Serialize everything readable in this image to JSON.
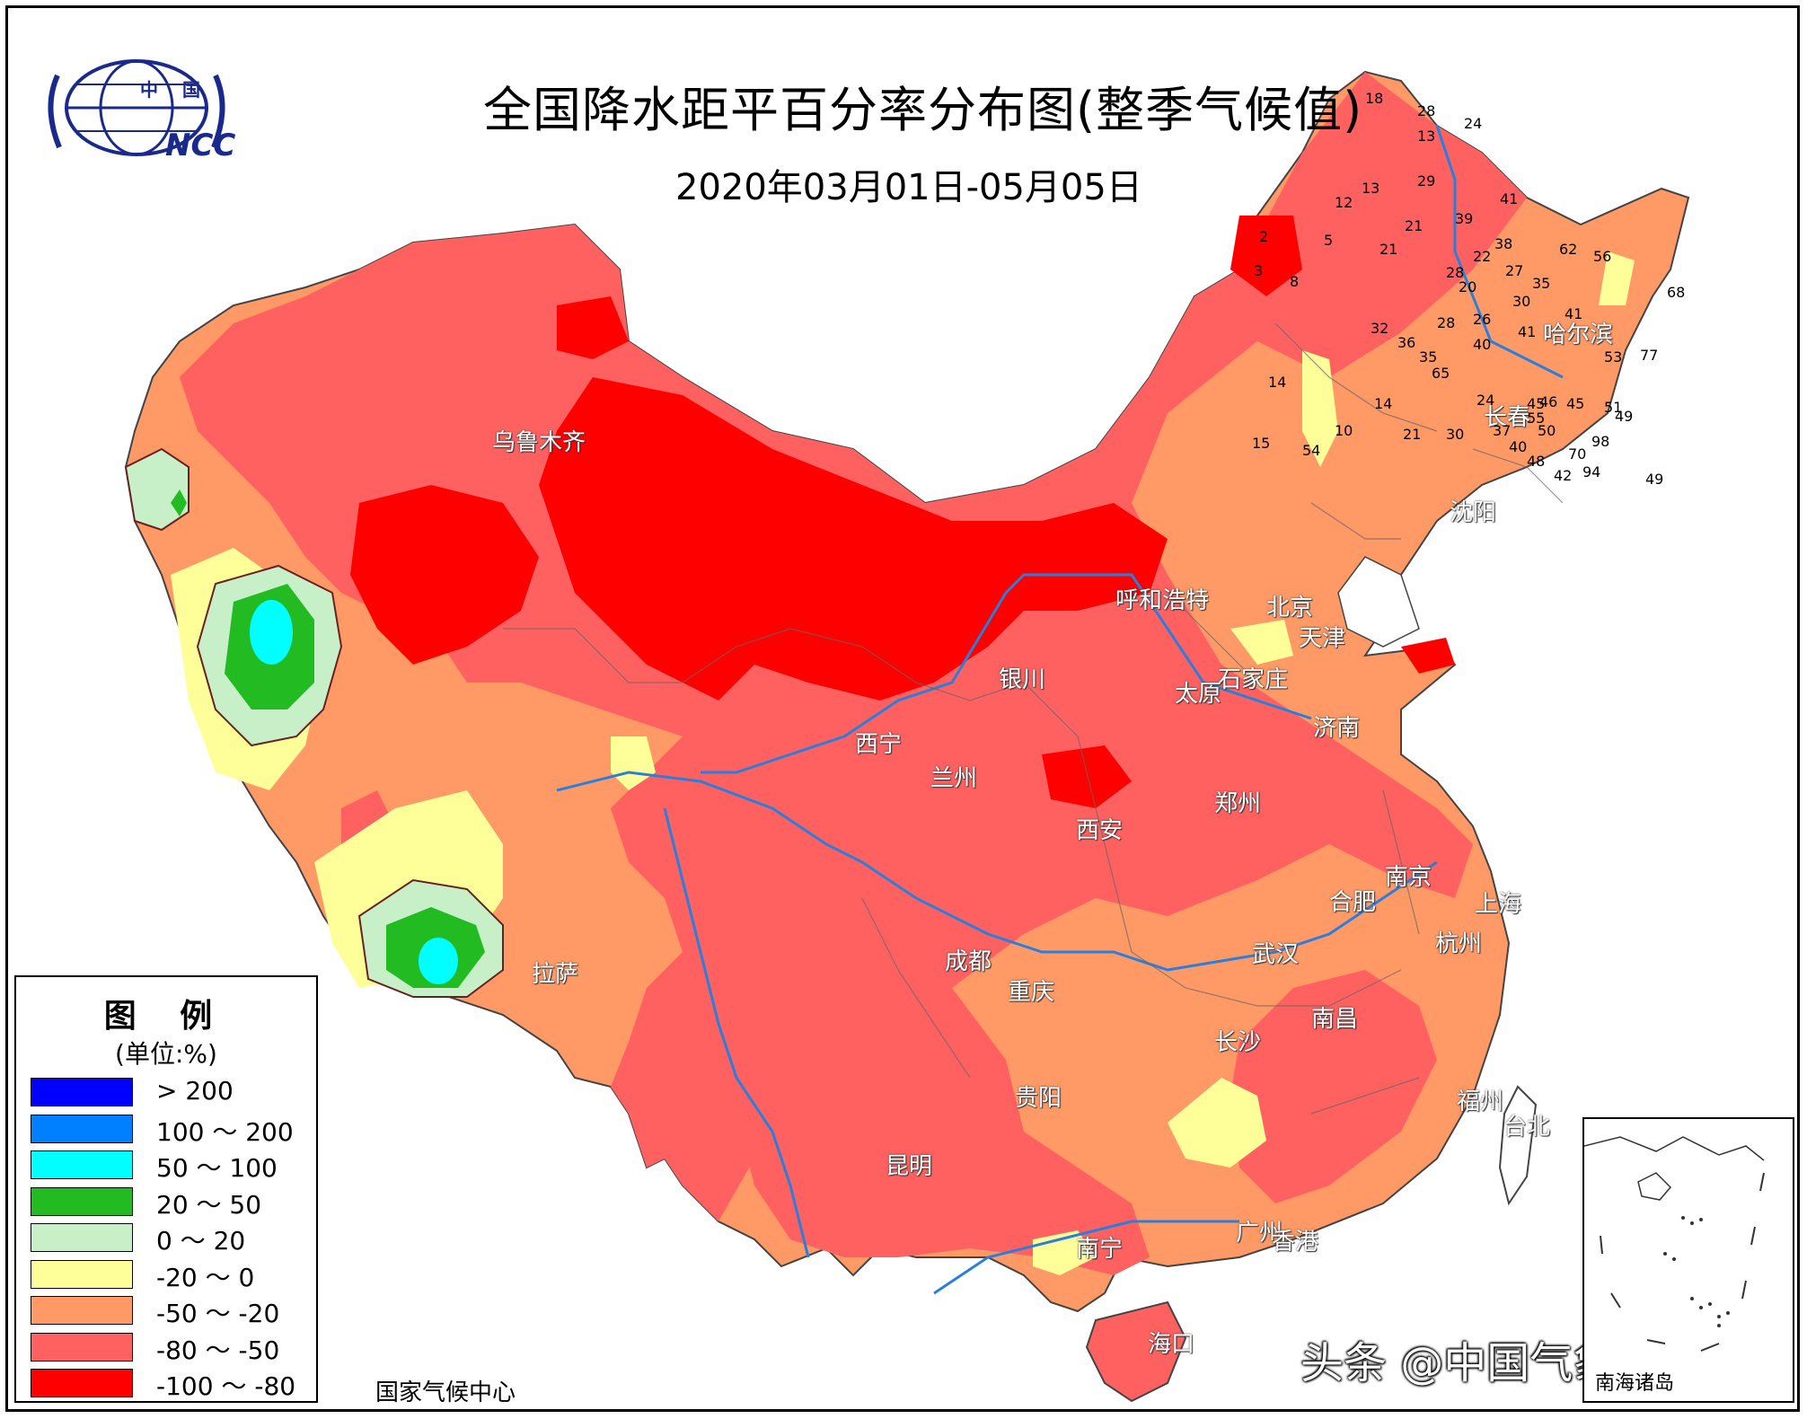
{
  "header": {
    "title": "全国降水距平百分率分布图(整季气候值)",
    "subtitle": "2020年03月01日-05月05日"
  },
  "logo": {
    "country_text": "中 国",
    "org_text": "NCC"
  },
  "legend": {
    "title": "图 例",
    "unit": "(单位:%)",
    "items": [
      {
        "label": "> 200",
        "color": "#0000ff"
      },
      {
        "label": "100 ～ 200",
        "color": "#0080ff"
      },
      {
        "label": "50 ～ 100",
        "color": "#00ffff"
      },
      {
        "label": "20 ～ 50",
        "color": "#22bb22"
      },
      {
        "label": "0 ～ 20",
        "color": "#c8f0c8"
      },
      {
        "label": "-20 ～ 0",
        "color": "#ffff99"
      },
      {
        "label": "-50 ～ -20",
        "color": "#ff9966"
      },
      {
        "label": "-80 ～ -50",
        "color": "#ff6060"
      },
      {
        "label": "-100 ～ -80",
        "color": "#ff0000"
      }
    ]
  },
  "footer": {
    "source": "国家气候中心"
  },
  "watermark": "头条 @中国气象爱好者",
  "inset": {
    "label": "南海诸岛"
  },
  "cities": [
    {
      "name": "乌鲁木齐"
    },
    {
      "name": "哈尔滨"
    },
    {
      "name": "长春"
    },
    {
      "name": "沈阳"
    },
    {
      "name": "呼和浩特"
    },
    {
      "name": "北京"
    },
    {
      "name": "天津"
    },
    {
      "name": "石家庄"
    },
    {
      "name": "太原"
    },
    {
      "name": "济南"
    },
    {
      "name": "银川"
    },
    {
      "name": "西宁"
    },
    {
      "name": "兰州"
    },
    {
      "name": "郑州"
    },
    {
      "name": "西安"
    },
    {
      "name": "南京"
    },
    {
      "name": "合肥"
    },
    {
      "name": "上海"
    },
    {
      "name": "杭州"
    },
    {
      "name": "武汉"
    },
    {
      "name": "成都"
    },
    {
      "name": "重庆"
    },
    {
      "name": "长沙"
    },
    {
      "name": "南昌"
    },
    {
      "name": "福州"
    },
    {
      "name": "台北"
    },
    {
      "name": "贵阳"
    },
    {
      "name": "昆明"
    },
    {
      "name": "南宁"
    },
    {
      "name": "广州"
    },
    {
      "name": "香港"
    },
    {
      "name": "海口"
    },
    {
      "name": "拉萨"
    }
  ],
  "station_values": [
    "18",
    "28",
    "24",
    "13",
    "29",
    "13",
    "12",
    "39",
    "41",
    "21",
    "21",
    "5",
    "28",
    "38",
    "62",
    "56",
    "68",
    "2",
    "3",
    "8",
    "22",
    "27",
    "35",
    "20",
    "30",
    "41",
    "41",
    "77",
    "26",
    "32",
    "36",
    "28",
    "35",
    "40",
    "53",
    "51",
    "45",
    "46",
    "45",
    "55",
    "49",
    "50",
    "70",
    "94",
    "98",
    "65",
    "24",
    "14",
    "14",
    "54",
    "10",
    "15",
    "21",
    "30",
    "37",
    "40",
    "48",
    "42",
    "49"
  ]
}
